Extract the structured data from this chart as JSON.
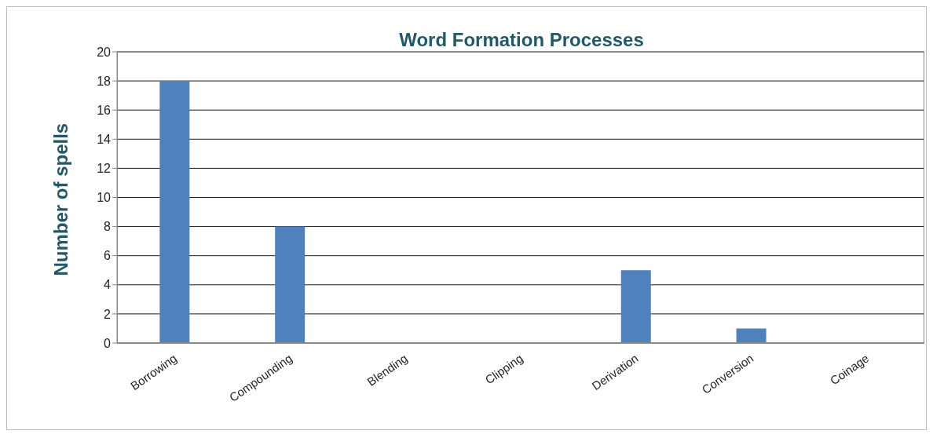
{
  "chart_data": {
    "type": "bar",
    "title": "Word Formation Processes",
    "ylabel": "Number of spells",
    "categories": [
      "Borrowing",
      "Compounding",
      "Blending",
      "Clipping",
      "Derivation",
      "Conversion",
      "Coinage"
    ],
    "values": [
      18,
      8,
      0,
      0,
      5,
      1,
      0
    ],
    "color": "#4f81bd",
    "ylim": [
      0,
      20
    ],
    "yticks": [
      0,
      2,
      4,
      6,
      8,
      10,
      12,
      14,
      16,
      18,
      20
    ],
    "grid": "y"
  }
}
